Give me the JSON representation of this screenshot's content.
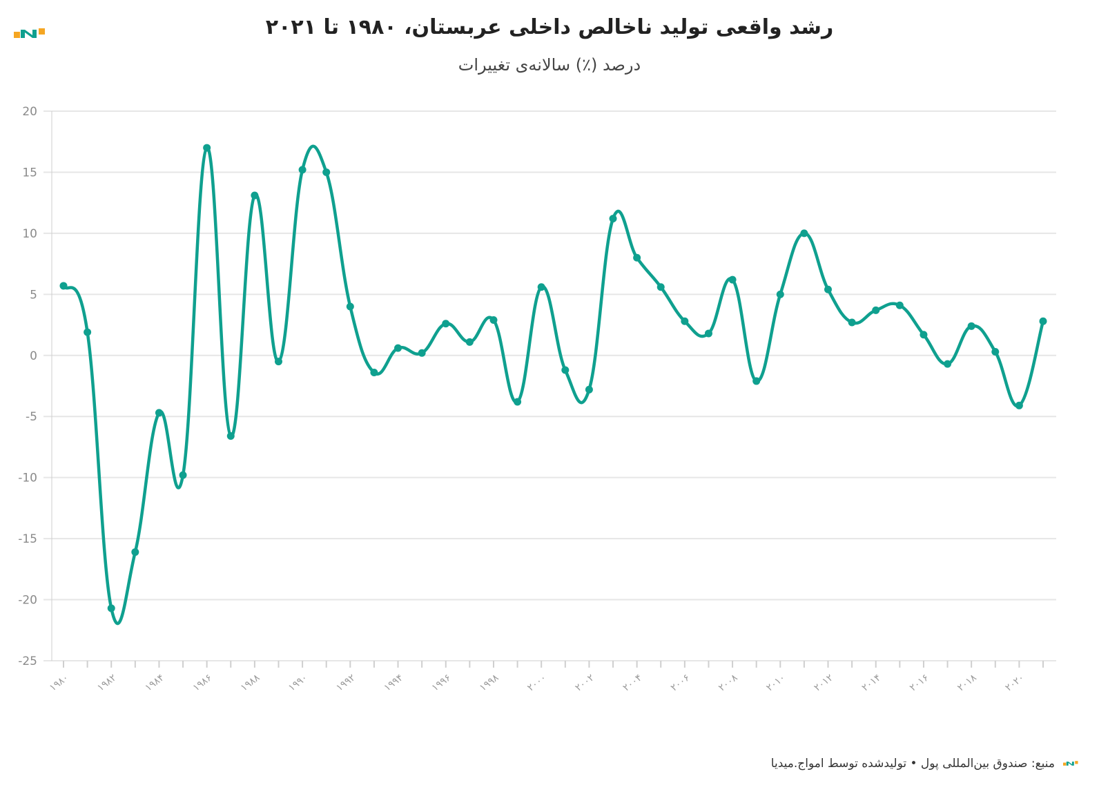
{
  "title": "رشد واقعی تولید ناخالص داخلی عربستان، ۱۹۸۰ تا ۲۰۲۱",
  "subtitle": "درصد (٪) سالانه‌ی تغییرات",
  "footer": "منبع: صندوق بین‌المللی پول • تولیدشده توسط امواج.میدیا",
  "colors": {
    "line": "#0fa08f",
    "grid": "#e6e6e6",
    "logo_orange": "#f5a623",
    "logo_teal": "#0fa08f"
  },
  "logo_icon": "amwaj-logo-icon",
  "chart_data": {
    "type": "line",
    "title": "رشد واقعی تولید ناخالص داخلی عربستان، ۱۹۸۰ تا ۲۰۲۱",
    "subtitle": "درصد (٪) سالانه‌ی تغییرات",
    "xlabel": "",
    "ylabel": "",
    "ylim": [
      -25,
      20
    ],
    "yticks": [
      20,
      15,
      10,
      5,
      0,
      -5,
      -10,
      -15,
      -20,
      -25
    ],
    "ytick_labels": [
      "20",
      "15",
      "10",
      "5",
      "0",
      "-5",
      "-10",
      "-15",
      "-20",
      "-25"
    ],
    "grid": true,
    "x": [
      1980,
      1981,
      1982,
      1983,
      1984,
      1985,
      1986,
      1987,
      1988,
      1989,
      1990,
      1991,
      1992,
      1993,
      1994,
      1995,
      1996,
      1997,
      1998,
      1999,
      2000,
      2001,
      2002,
      2003,
      2004,
      2005,
      2006,
      2007,
      2008,
      2009,
      2010,
      2011,
      2012,
      2013,
      2014,
      2015,
      2016,
      2017,
      2018,
      2019,
      2020,
      2021
    ],
    "xtick_labels": [
      {
        "year": 1980,
        "label": "۱۹۸۰"
      },
      {
        "year": 1982,
        "label": "۱۹۸۲"
      },
      {
        "year": 1984,
        "label": "۱۹۸۴"
      },
      {
        "year": 1986,
        "label": "۱۹۸۶"
      },
      {
        "year": 1988,
        "label": "۱۹۸۸"
      },
      {
        "year": 1990,
        "label": "۱۹۹۰"
      },
      {
        "year": 1992,
        "label": "۱۹۹۲"
      },
      {
        "year": 1994,
        "label": "۱۹۹۴"
      },
      {
        "year": 1996,
        "label": "۱۹۹۶"
      },
      {
        "year": 1998,
        "label": "۱۹۹۸"
      },
      {
        "year": 2000,
        "label": "۲۰۰۰"
      },
      {
        "year": 2002,
        "label": "۲۰۰۲"
      },
      {
        "year": 2004,
        "label": "۲۰۰۴"
      },
      {
        "year": 2006,
        "label": "۲۰۰۶"
      },
      {
        "year": 2008,
        "label": "۲۰۰۸"
      },
      {
        "year": 2010,
        "label": "۲۰۱۰"
      },
      {
        "year": 2012,
        "label": "۲۰۱۲"
      },
      {
        "year": 2014,
        "label": "۲۰۱۴"
      },
      {
        "year": 2016,
        "label": "۲۰۱۶"
      },
      {
        "year": 2018,
        "label": "۲۰۱۸"
      },
      {
        "year": 2020,
        "label": "۲۰۲۰"
      }
    ],
    "series": [
      {
        "values": [
          5.7,
          1.9,
          -20.7,
          -16.1,
          -4.7,
          -9.8,
          17.0,
          -6.6,
          13.1,
          -0.5,
          15.2,
          15.0,
          4.0,
          -1.4,
          0.6,
          0.2,
          2.6,
          1.1,
          2.9,
          -3.8,
          5.6,
          -1.2,
          -2.8,
          11.2,
          8.0,
          5.6,
          2.8,
          1.8,
          6.2,
          -2.1,
          5.0,
          10.0,
          5.4,
          2.7,
          3.7,
          4.1,
          1.7,
          -0.7,
          2.4,
          0.3,
          -4.1,
          2.8
        ]
      }
    ]
  }
}
